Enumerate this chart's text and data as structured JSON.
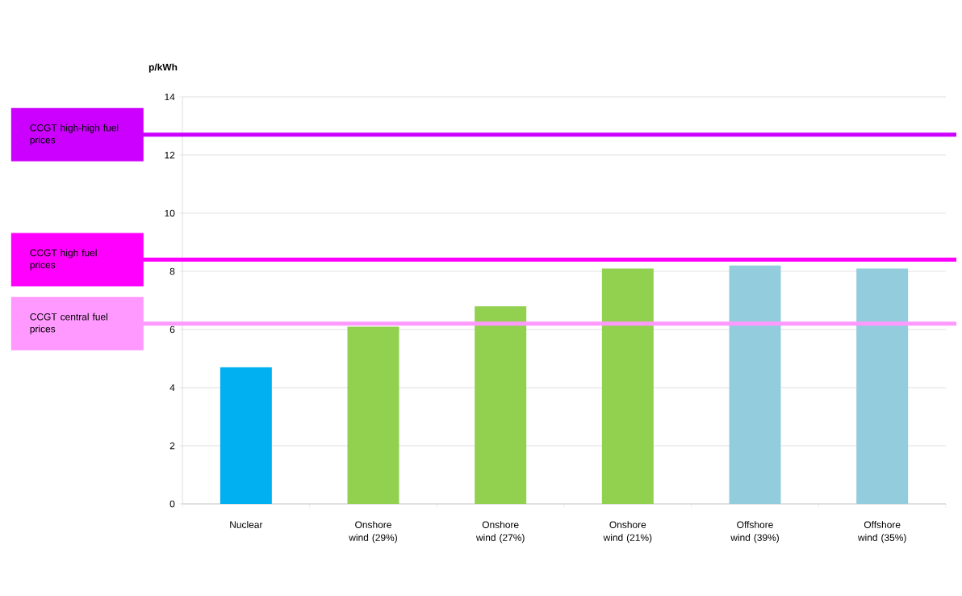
{
  "chart_data": {
    "type": "bar",
    "ylabel": "p/kWh",
    "categories": [
      "Nuclear",
      "Onshore wind (29%)",
      "Onshore wind (27%)",
      "Onshore wind (21%)",
      "Offshore wind (39%)",
      "Offshore wind (35%)"
    ],
    "values": [
      4.7,
      6.1,
      6.8,
      8.1,
      8.2,
      8.1
    ],
    "colors": [
      "#00b0f0",
      "#92d050",
      "#92d050",
      "#92d050",
      "#93cddd",
      "#93cddd"
    ],
    "ylim": [
      0,
      14
    ],
    "yticks": [
      0,
      2,
      4,
      6,
      8,
      10,
      12,
      14
    ],
    "grid": "y",
    "ref_lines": [
      {
        "axis": "y",
        "value": 12.7,
        "label": "CCGT high-high fuel prices",
        "color": "#cc00ff"
      },
      {
        "axis": "y",
        "value": 8.4,
        "label": "CCGT high fuel prices",
        "color": "#ff00ff"
      },
      {
        "axis": "y",
        "value": 6.2,
        "label": "CCGT central fuel prices",
        "color": "#ff99ff"
      }
    ]
  }
}
